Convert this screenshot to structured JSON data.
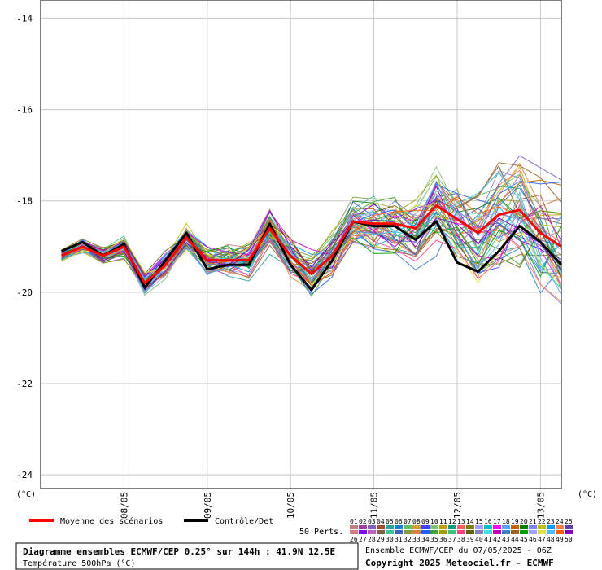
{
  "chart_data": {
    "type": "line",
    "title": "Diagramme ensembles ECMWF/CEP 0.25° sur 144h : 41.9N 12.5E",
    "subtitle": "Température 500hPa (°C)",
    "ylabel_left": "(°C)",
    "ylabel_right": "(°C)",
    "ylim": [
      -24.3,
      -13.6
    ],
    "y_ticks": [
      -14,
      -16,
      -18,
      -20,
      -22,
      -24
    ],
    "y_tick_labels": [
      "-14",
      "-16",
      "-18",
      "-20",
      "-22",
      "-24"
    ],
    "x_steps": [
      0,
      6,
      12,
      18,
      24,
      30,
      36,
      42,
      48,
      54,
      60,
      66,
      72,
      78,
      84,
      90,
      96,
      102,
      108,
      114,
      120,
      126,
      132,
      138,
      144
    ],
    "x_start_hour": 6,
    "day_labels": [
      {
        "label": "08/05",
        "step": 18
      },
      {
        "label": "09/05",
        "step": 42
      },
      {
        "label": "10/05",
        "step": 66
      },
      {
        "label": "11/05",
        "step": 90
      },
      {
        "label": "12/05",
        "step": 114
      },
      {
        "label": "13/05",
        "step": 138
      }
    ],
    "series": [
      {
        "name": "Moyenne des scénarios",
        "color": "#ff0000",
        "width": 3,
        "values": [
          -19.2,
          -19.0,
          -19.2,
          -19.0,
          -19.8,
          -19.4,
          -18.8,
          -19.3,
          -19.3,
          -19.3,
          -18.6,
          -19.2,
          -19.6,
          -19.2,
          -18.45,
          -18.5,
          -18.5,
          -18.6,
          -18.1,
          -18.4,
          -18.7,
          -18.3,
          -18.2,
          -18.7,
          -19.0
        ]
      },
      {
        "name": "Contrôle/Det",
        "color": "#000000",
        "width": 3,
        "values": [
          -19.1,
          -18.9,
          -19.2,
          -18.95,
          -19.9,
          -19.3,
          -18.7,
          -19.5,
          -19.4,
          -19.4,
          -18.5,
          -19.4,
          -19.95,
          -19.3,
          -18.45,
          -18.55,
          -18.55,
          -18.85,
          -18.45,
          -19.35,
          -19.55,
          -19.1,
          -18.55,
          -18.9,
          -19.4
        ]
      }
    ],
    "legend": {
      "mean_label": "Moyenne des scénarios",
      "control_label": "Contrôle/Det",
      "members_label": "50 Perts.",
      "member_numbers_row1": [
        "01",
        "02",
        "03",
        "04",
        "05",
        "06",
        "07",
        "08",
        "09",
        "10",
        "11",
        "12",
        "13",
        "14",
        "15",
        "16",
        "17",
        "18",
        "19",
        "20",
        "21",
        "22",
        "23",
        "24",
        "25"
      ],
      "member_numbers_row2": [
        "26",
        "27",
        "28",
        "29",
        "30",
        "31",
        "32",
        "33",
        "34",
        "35",
        "36",
        "37",
        "38",
        "39",
        "40",
        "41",
        "42",
        "43",
        "44",
        "45",
        "46",
        "47",
        "48",
        "49",
        "50"
      ],
      "member_colors": [
        "#c08080",
        "#a040a0",
        "#8060c0",
        "#a05030",
        "#30a0a0",
        "#2080d0",
        "#60c060",
        "#d0a030",
        "#4040ff",
        "#80c080",
        "#c0a000",
        "#00a080",
        "#ff6060",
        "#808000",
        "#a0a0ff",
        "#00c0c0",
        "#ff00ff",
        "#60a0ff",
        "#c06000",
        "#008000",
        "#8080ff",
        "#c0c000",
        "#00a0ff",
        "#ff8040",
        "#6040a0"
      ],
      "member_colors_row2": [
        "#d08080",
        "#8000ff",
        "#c060c0",
        "#806040",
        "#40c0a0",
        "#4060c0",
        "#80a040",
        "#e08040",
        "#2060ff",
        "#40a040",
        "#a0a000",
        "#40c080",
        "#ff4080",
        "#606000",
        "#8080c0",
        "#40e0e0",
        "#c000c0",
        "#4080c0",
        "#a06020",
        "#00a000",
        "#a0a0ff",
        "#e0e040",
        "#40c0ff",
        "#ff6000",
        "#8000c0"
      ]
    },
    "footer": {
      "ensemble_line": "Ensemble ECMWF/CEP du 07/05/2025 - 06Z",
      "copyright_line": "Copyright 2025 Meteociel.fr - ECMWF"
    },
    "grid": true,
    "perturbation_member_count": 50
  }
}
